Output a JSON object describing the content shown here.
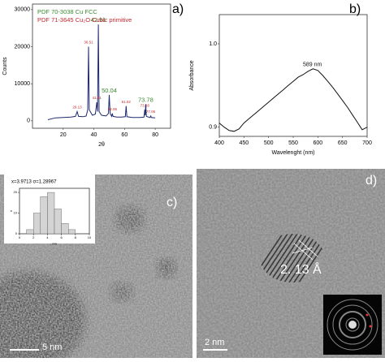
{
  "chart_data": [
    {
      "type": "line",
      "panel_label": "a)",
      "xlabel": "2θ",
      "ylabel": "Counts",
      "legend": [
        {
          "name": "PDF 70-3038 Cu FCC",
          "color": "#3a8a2e"
        },
        {
          "name": "PDF 71-3645 Cu₂O Cubic primitive",
          "color": "#c0282f"
        }
      ],
      "x": [
        10,
        15,
        20,
        25,
        28,
        29.13,
        30,
        33,
        35,
        36,
        36.51,
        37,
        39,
        41,
        41.91,
        42.4,
        42.91,
        43.4,
        45,
        48,
        49.5,
        50.04,
        50.6,
        51.6,
        52.06,
        52.5,
        55,
        58,
        60.5,
        61.02,
        61.5,
        65,
        70,
        72.7,
        73.18,
        73.5,
        73.78,
        74.2,
        76.6,
        77.06,
        77.5,
        80
      ],
      "series": [
        {
          "color": "#1f2a6e",
          "values": [
            300,
            800,
            900,
            1000,
            1200,
            2500,
            1200,
            1100,
            1300,
            3000,
            20000,
            3000,
            1500,
            1800,
            5000,
            2500,
            26000,
            2500,
            1500,
            1300,
            2000,
            7000,
            2000,
            1200,
            2000,
            1200,
            1000,
            1000,
            1100,
            4000,
            1100,
            900,
            900,
            1000,
            3000,
            1500,
            4500,
            1200,
            900,
            1300,
            900,
            800
          ]
        }
      ],
      "annotations": [
        {
          "label": "42.91",
          "x": 42.91,
          "y": 26000,
          "color": "#3a8a2e"
        },
        {
          "label": "50.04",
          "x": 50.04,
          "y": 7000,
          "color": "#3a8a2e"
        },
        {
          "label": "73.78",
          "x": 73.78,
          "y": 4500,
          "color": "#3a8a2e"
        },
        {
          "label": "36.51",
          "x": 36.51,
          "y": 20000,
          "color": "#c0282f"
        },
        {
          "label": "41.91",
          "x": 41.91,
          "y": 5000,
          "color": "#c0282f"
        },
        {
          "label": "29.13",
          "x": 29.13,
          "y": 2500,
          "color": "#c0282f"
        },
        {
          "label": "52.06",
          "x": 52.06,
          "y": 2000,
          "color": "#c0282f"
        },
        {
          "label": "61.02",
          "x": 61.02,
          "y": 4000,
          "color": "#c0282f"
        },
        {
          "label": "73.18",
          "x": 73.18,
          "y": 3000,
          "color": "#c0282f"
        },
        {
          "label": "77.06",
          "x": 77.06,
          "y": 1300,
          "color": "#c0282f"
        }
      ],
      "xlim": [
        0,
        90
      ],
      "xticks": [
        20,
        40,
        60,
        80
      ],
      "ylim": [
        -2000,
        31500
      ],
      "yticks": [
        0,
        10000,
        20000,
        30000
      ]
    },
    {
      "type": "line",
      "panel_label": "b)",
      "xlabel": "Wavelenght (nm)",
      "ylabel": "Absorbance",
      "x": [
        400,
        410,
        420,
        430,
        440,
        450,
        460,
        470,
        480,
        490,
        500,
        510,
        520,
        530,
        540,
        550,
        560,
        570,
        580,
        590,
        600,
        610,
        620,
        630,
        640,
        650,
        660,
        670,
        680,
        690,
        700
      ],
      "series": [
        {
          "color": "#111111",
          "values": [
            0.905,
            0.9,
            0.896,
            0.895,
            0.898,
            0.905,
            0.91,
            0.915,
            0.92,
            0.925,
            0.93,
            0.935,
            0.94,
            0.945,
            0.95,
            0.955,
            0.96,
            0.963,
            0.967,
            0.97,
            0.968,
            0.962,
            0.955,
            0.948,
            0.94,
            0.932,
            0.924,
            0.915,
            0.906,
            0.897,
            0.9
          ]
        }
      ],
      "annotations": [
        {
          "label": "589 nm",
          "x": 589,
          "y": 0.97,
          "color": "#111111"
        }
      ],
      "xlim": [
        400,
        700
      ],
      "xticks": [
        400,
        450,
        500,
        550,
        600,
        650,
        700
      ],
      "ylim": [
        0.889,
        1.035
      ],
      "yticks": [
        0.9,
        {
          "value": 1,
          "label": "1.0"
        }
      ]
    },
    {
      "type": "histogram",
      "xlabel": "nm",
      "ylabel": "#",
      "subtitle": "x=3.9713 σ=1.28967",
      "bins": [
        1,
        2,
        3,
        4,
        5,
        6,
        7,
        8
      ],
      "values": [
        2,
        10,
        18,
        20,
        12,
        5,
        2
      ],
      "color": "#d4d4d4",
      "xlim": [
        0,
        10
      ],
      "xticks": [
        0,
        2,
        4,
        6,
        8,
        10
      ],
      "ylim": [
        0,
        22
      ],
      "yticks": [
        0,
        10,
        20
      ]
    }
  ],
  "images": [
    {
      "label": "c)",
      "scale_bar": "5 nm"
    },
    {
      "label": "d)",
      "scale_bar": "2 nm",
      "annotation": "2. 13 Å"
    }
  ]
}
